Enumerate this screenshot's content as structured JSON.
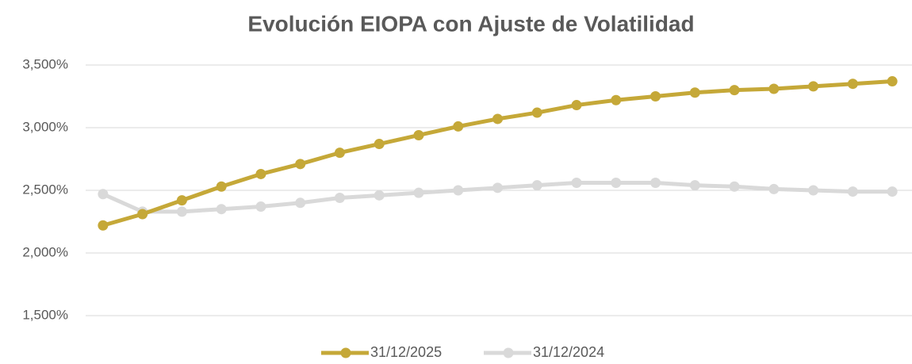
{
  "chart_data": {
    "type": "line",
    "title": "Evolución EIOPA con Ajuste de Volatilidad",
    "categories": [
      null,
      null,
      null,
      null,
      null,
      null,
      null,
      null,
      null,
      null,
      null,
      null,
      null,
      null,
      null,
      null,
      null,
      null,
      null,
      null,
      null
    ],
    "series": [
      {
        "name": "31/12/2025",
        "color": "#c5a838",
        "values": [
          2.22,
          2.31,
          2.42,
          2.53,
          2.63,
          2.71,
          2.8,
          2.87,
          2.94,
          3.01,
          3.07,
          3.12,
          3.18,
          3.22,
          3.25,
          3.28,
          3.3,
          3.31,
          3.33,
          3.35,
          3.37
        ]
      },
      {
        "name": "31/12/2024",
        "color": "#d9d9d9",
        "values": [
          2.47,
          2.33,
          2.33,
          2.35,
          2.37,
          2.4,
          2.44,
          2.46,
          2.48,
          2.5,
          2.52,
          2.54,
          2.56,
          2.56,
          2.56,
          2.54,
          2.53,
          2.51,
          2.5,
          2.49,
          2.49
        ]
      }
    ],
    "ylim": [
      1.5,
      3.5
    ],
    "yticks": [
      {
        "value": 1.5,
        "label": "1,500%"
      },
      {
        "value": 2.0,
        "label": "2,000%"
      },
      {
        "value": 2.5,
        "label": "2,500%"
      },
      {
        "value": 3.0,
        "label": "3,000%"
      },
      {
        "value": 3.5,
        "label": "3,500%"
      }
    ],
    "grid": true,
    "legend": "bottom"
  }
}
